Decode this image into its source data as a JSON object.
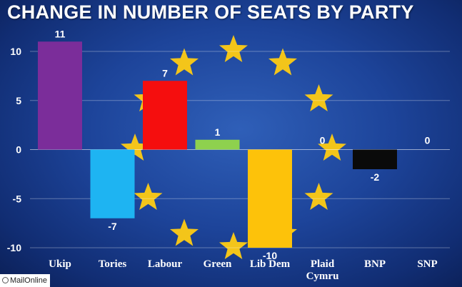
{
  "title": "CHANGE IN NUMBER OF SEATS BY PARTY",
  "source": "MailOnline",
  "colors": {
    "background": "#1d449a",
    "stars": "#f3c51a",
    "grid": "#ffffff"
  },
  "chart_data": {
    "type": "bar",
    "title": "CHANGE IN NUMBER OF SEATS BY PARTY",
    "categories": [
      "Ukip",
      "Tories",
      "Labour",
      "Green",
      "Lib Dem",
      "Plaid Cymru",
      "BNP",
      "SNP"
    ],
    "category_lines": [
      [
        "Ukip"
      ],
      [
        "Tories"
      ],
      [
        "Labour"
      ],
      [
        "Green"
      ],
      [
        "Lib Dem"
      ],
      [
        "Plaid",
        "Cymru"
      ],
      [
        "BNP"
      ],
      [
        "SNP"
      ]
    ],
    "values": [
      11,
      -7,
      7,
      1,
      -10,
      0,
      -2,
      0
    ],
    "data_labels": [
      "11",
      "-7",
      "7",
      "1",
      "-10",
      "0",
      "-2",
      "0"
    ],
    "colors": [
      "#7b2d9a",
      "#1eb4f2",
      "#f50e0e",
      "#8ed14e",
      "#fdc20a",
      "#3a6fc4",
      "#0a0a0a",
      "#3a6fc4"
    ],
    "ylim": [
      -10,
      10
    ],
    "yticks": [
      10,
      5,
      0,
      -5,
      -10
    ],
    "ytick_labels": [
      "10",
      "5",
      "0",
      "-5",
      "-10"
    ],
    "grid": true,
    "xlabel": "",
    "ylabel": ""
  }
}
